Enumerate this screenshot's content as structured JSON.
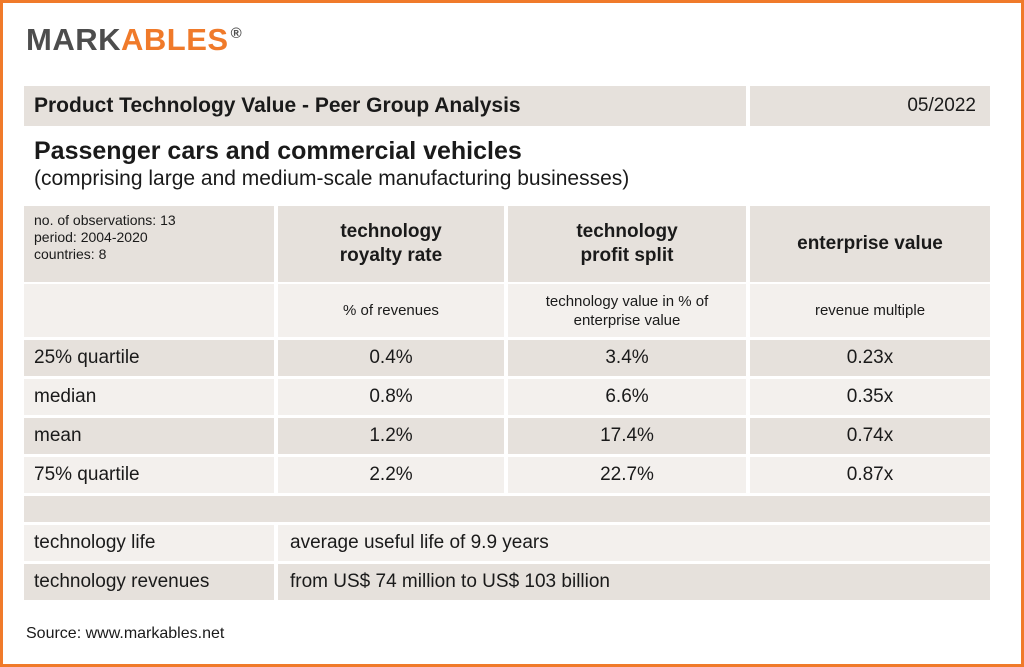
{
  "logo": {
    "part1": "MARK",
    "part2": "ABLES",
    "mark": "®"
  },
  "header": {
    "title": "Product Technology Value - Peer Group Analysis",
    "date": "05/2022"
  },
  "subtitle": {
    "line1": "Passenger cars and commercial vehicles",
    "line2": "(comprising large and medium-scale manufacturing businesses)"
  },
  "meta": {
    "observations": "no. of observations: 13",
    "period": "period: 2004-2020",
    "countries": "countries: 8"
  },
  "columns": [
    {
      "line1": "technology",
      "line2": "royalty rate",
      "unit_line1": "% of revenues",
      "unit_line2": ""
    },
    {
      "line1": "technology",
      "line2": "profit split",
      "unit_line1": "technology value in % of",
      "unit_line2": "enterprise value"
    },
    {
      "line1": "enterprise value",
      "line2": "",
      "unit_line1": "revenue multiple",
      "unit_line2": ""
    }
  ],
  "rows": [
    {
      "label": "25% quartile",
      "values": [
        "0.4%",
        "3.4%",
        "0.23x"
      ]
    },
    {
      "label": "median",
      "values": [
        "0.8%",
        "6.6%",
        "0.35x"
      ]
    },
    {
      "label": "mean",
      "values": [
        "1.2%",
        "17.4%",
        "0.74x"
      ]
    },
    {
      "label": "75% quartile",
      "values": [
        "2.2%",
        "22.7%",
        "0.87x"
      ]
    }
  ],
  "footer_rows": [
    {
      "label": "technology life",
      "value": "average useful life of 9.9 years"
    },
    {
      "label": "technology revenues",
      "value": "from US$ 74 million to US$ 103 billion"
    }
  ],
  "source": "Source: www.markables.net",
  "colors": {
    "accent": "#f07a2a",
    "logo_gray": "#4d4d4d",
    "cell_dark": "#e6e1dc",
    "cell_light": "#f3f0ed"
  }
}
